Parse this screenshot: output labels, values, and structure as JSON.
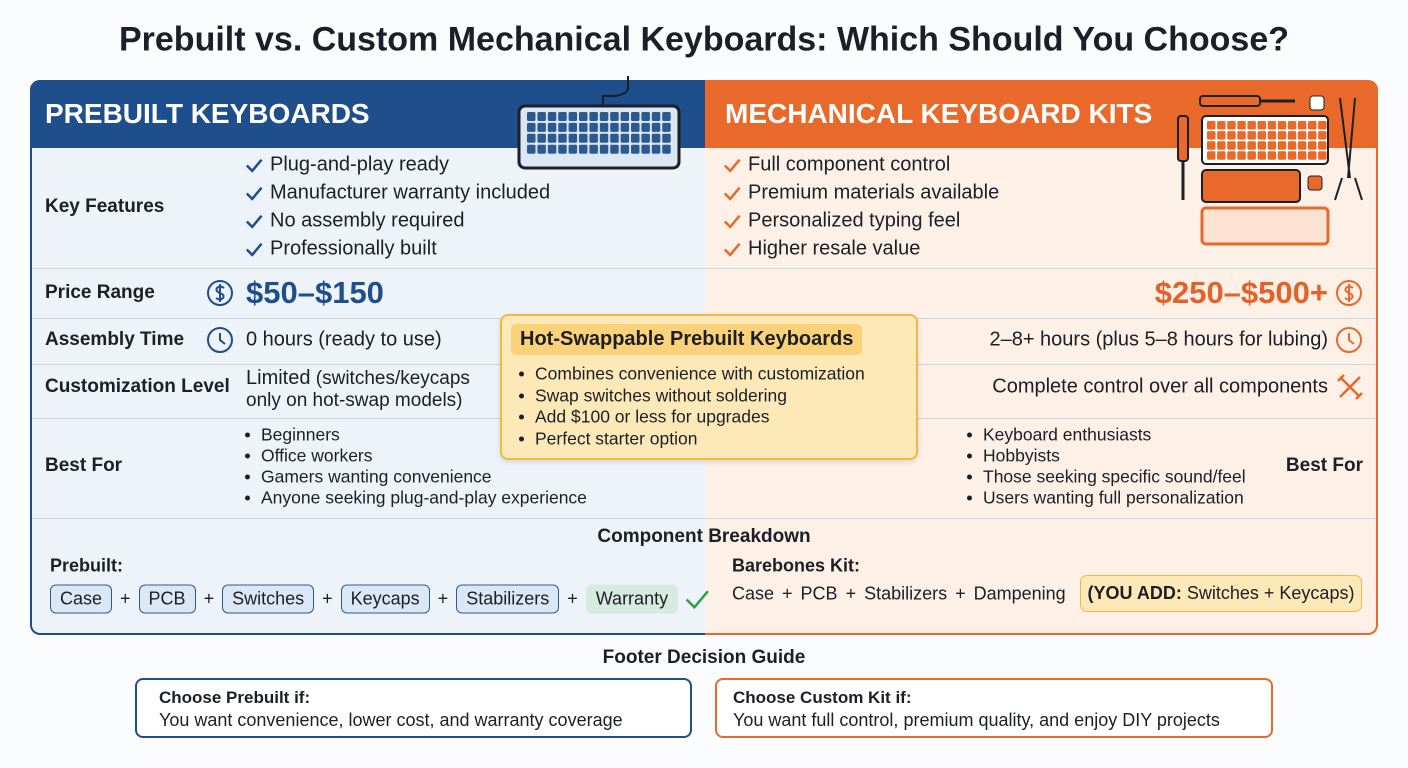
{
  "title": "Prebuilt vs. Custom Mechanical Keyboards: Which Should You Choose?",
  "row_labels": [
    "Key Features",
    "Price Range",
    "Assembly Time",
    "Customization Level",
    "Best For"
  ],
  "prebuilt": {
    "heading": "PREBUILT KEYBOARDS",
    "features": [
      "Plug-and-play ready",
      "Manufacturer warranty included",
      "No assembly required",
      "Professionally built"
    ],
    "price": "$50–$150",
    "assembly": "0 hours (ready to use)",
    "customization": {
      "level": "Limited",
      "note": "(switches/keycaps only on hot-swap models)"
    },
    "best_for": [
      "Beginners",
      "Office workers",
      "Gamers wanting convenience",
      "Anyone seeking plug-and-play experience"
    ]
  },
  "kits": {
    "heading": "MECHANICAL KEYBOARD KITS",
    "features": [
      "Full component control",
      "Premium materials available",
      "Personalized typing feel",
      "Higher resale value"
    ],
    "price": "$250–$500+",
    "assembly": "2–8+ hours (plus 5–8 hours for lubing)",
    "customization": "Complete control over all components",
    "best_for": [
      "Keyboard enthusiasts",
      "Hobbyists",
      "Those seeking specific sound/feel",
      "Users wanting full personalization"
    ]
  },
  "callout": {
    "title": "Hot-Swappable Prebuilt Keyboards",
    "items": [
      "Combines convenience with customization",
      "Swap switches without soldering",
      "Add $100 or less for upgrades",
      "Perfect starter option"
    ]
  },
  "breakdown": {
    "title": "Component Breakdown",
    "separator": "+",
    "prebuilt": {
      "label": "Prebuilt:",
      "parts": [
        "Case",
        "PCB",
        "Switches",
        "Keycaps",
        "Stabilizers",
        "Warranty"
      ]
    },
    "kit": {
      "label": "Barebones Kit:",
      "parts": [
        "Case",
        "PCB",
        "Stabilizers",
        "Dampening"
      ],
      "add_label": "(YOU ADD:",
      "add": "Switches + Keycaps)"
    }
  },
  "footer": {
    "title": "Footer Decision Guide",
    "cards": [
      {
        "heading": "Choose Prebuilt if:",
        "text": "You want convenience, lower cost, and warranty coverage"
      },
      {
        "heading": "Choose Custom Kit if:",
        "text": "You want full control, premium quality, and enjoy DIY projects"
      }
    ]
  }
}
